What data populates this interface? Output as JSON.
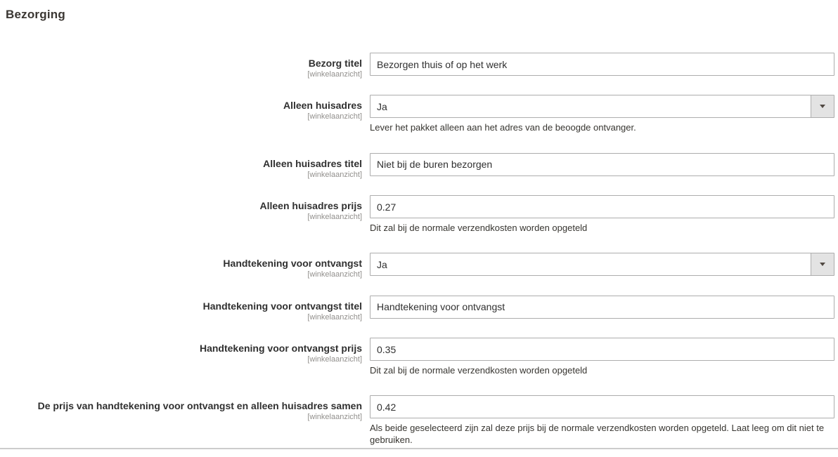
{
  "page": {
    "title": "Bezorging"
  },
  "colors": {
    "input_border": "#adadad",
    "select_button_bg": "#e3e3e3",
    "divider": "#cccccc",
    "label_text": "#303030",
    "scope_text": "#918f8c"
  },
  "fields": [
    {
      "label": "Bezorg titel",
      "scope": "[winkelaanzicht]",
      "type": "text",
      "value": "Bezorgen thuis of op het werk",
      "note": ""
    },
    {
      "label": "Alleen huisadres",
      "scope": "[winkelaanzicht]",
      "type": "select",
      "value": "Ja",
      "note": "Lever het pakket alleen aan het adres van de beoogde ontvanger."
    },
    {
      "label": "Alleen huisadres titel",
      "scope": "[winkelaanzicht]",
      "type": "text",
      "value": "Niet bij de buren bezorgen",
      "note": ""
    },
    {
      "label": "Alleen huisadres prijs",
      "scope": "[winkelaanzicht]",
      "type": "text",
      "value": "0.27",
      "note": "Dit zal bij de normale verzendkosten worden opgeteld"
    },
    {
      "label": "Handtekening voor ontvangst",
      "scope": "[winkelaanzicht]",
      "type": "select",
      "value": "Ja",
      "note": ""
    },
    {
      "label": "Handtekening voor ontvangst titel",
      "scope": "[winkelaanzicht]",
      "type": "text",
      "value": "Handtekening voor ontvangst",
      "note": ""
    },
    {
      "label": "Handtekening voor ontvangst prijs",
      "scope": "[winkelaanzicht]",
      "type": "text",
      "value": "0.35",
      "note": "Dit zal bij de normale verzendkosten worden opgeteld"
    },
    {
      "label": "De prijs van handtekening voor ontvangst en alleen huisadres samen",
      "scope": "[winkelaanzicht]",
      "type": "text",
      "value": "0.42",
      "note": "Als beide geselecteerd zijn zal deze prijs bij de normale verzendkosten worden opgeteld. Laat leeg om dit niet te gebruiken."
    }
  ]
}
